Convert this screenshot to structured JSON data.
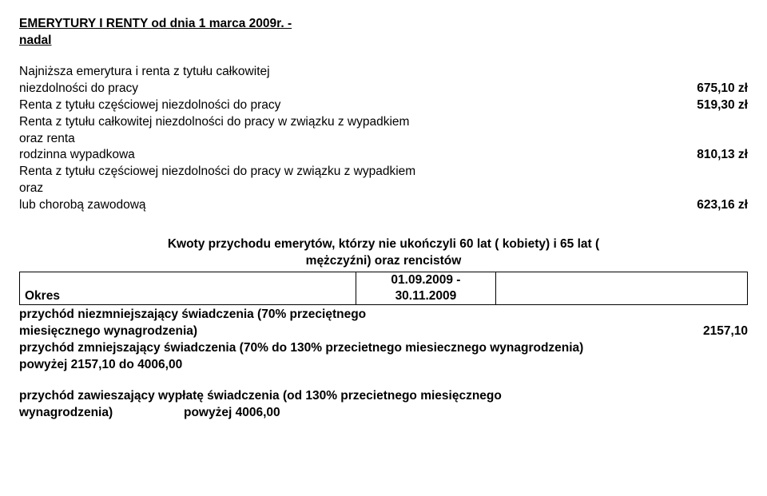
{
  "title_line1": "EMERYTURY I RENTY od dnia 1 marca 2009r. -",
  "title_line2": "nadal",
  "items": {
    "r1a": "Najniższa emerytura i renta z tytułu całkowitej",
    "r1b": "niezdolności do pracy",
    "v1": "675,10 zł",
    "r2": "Renta z tytułu częściowej niezdolności do pracy",
    "v2": "519,30 zł",
    "r3a": "Renta  z tytułu całkowitej niezdolności do pracy w związku z wypadkiem",
    "r3b": "oraz renta",
    "r3c": "rodzinna wypadkowa",
    "v3": "810,13 zł",
    "r4a": "Renta  z tytułu częściowej niezdolności do pracy w związku z wypadkiem",
    "r4b": "oraz",
    "r4c": "lub chorobą zawodową",
    "v4": "623,16 zł"
  },
  "kwoty": {
    "heading_l1": "Kwoty przychodu emerytów, którzy nie ukończyli 60 lat ( kobiety) i 65 lat (",
    "heading_l2": "mężczyźni) oraz rencistów",
    "okres_label": "Okres",
    "okres_date_l1": "01.09.2009 -",
    "okres_date_l2": "30.11.2009",
    "p1_l1": "przychód niezmniejszający świadczenia (70% przeciętnego",
    "p1_l2": "miesięcznego wynagrodzenia)",
    "p1_val": "2157,10",
    "p2_l1": "przychód zmniejszający świadczenia (70% do 130% przecietnego miesiecznego wynagrodzenia)",
    "p2_l2": "powyżej 2157,10 do 4006,00",
    "p3_l1": "przychód zawieszający wypłatę świadczenia (od 130% przecietnego miesięcznego",
    "p3_l2a": "wynagrodzenia)",
    "p3_l2b": "powyżej 4006,00"
  }
}
